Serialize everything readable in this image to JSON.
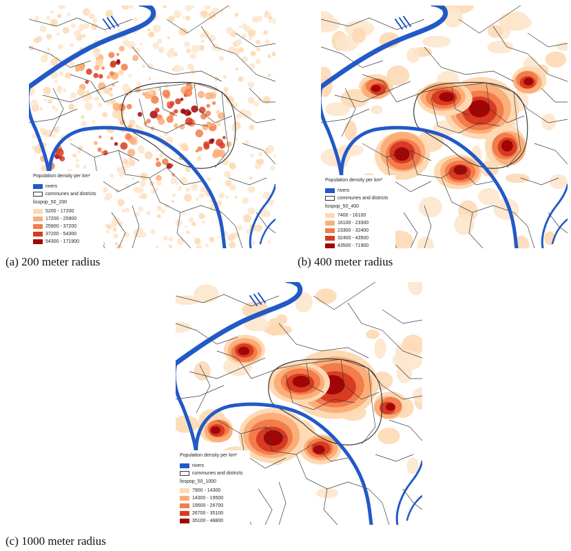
{
  "panels": [
    {
      "id": "a",
      "caption": "(a) 200 meter radius",
      "legend": {
        "title": "Population density per km²",
        "rivers_label": "rivers",
        "communes_label": "communes and districts",
        "field_name": "lisspop_50_200",
        "classes": [
          {
            "label": "5200 - 17200",
            "color": "#fdd9b4"
          },
          {
            "label": "17200 - 25900",
            "color": "#fcae79"
          },
          {
            "label": "25900 - 37200",
            "color": "#f27c4a"
          },
          {
            "label": "37200 - 54300",
            "color": "#d83b22"
          },
          {
            "label": "54300 - 171900",
            "color": "#a10606"
          }
        ]
      }
    },
    {
      "id": "b",
      "caption": "(b) 400 meter radius",
      "legend": {
        "title": "Population density per km²",
        "rivers_label": "rivers",
        "communes_label": "communes and districts",
        "field_name": "lisspop_50_400",
        "classes": [
          {
            "label": "7400 - 16100",
            "color": "#fdd9b4"
          },
          {
            "label": "16100 - 23300",
            "color": "#fcae79"
          },
          {
            "label": "23300 - 32400",
            "color": "#f27c4a"
          },
          {
            "label": "32400 - 43500",
            "color": "#d83b22"
          },
          {
            "label": "43500 - 71900",
            "color": "#a10606"
          }
        ]
      }
    },
    {
      "id": "c",
      "caption": "(c) 1000 meter radius",
      "legend": {
        "title": "Population density per km²",
        "rivers_label": "rivers",
        "communes_label": "communes and districts",
        "field_name": "lisspop_50_1000",
        "classes": [
          {
            "label": "7900 - 14300",
            "color": "#fdd9b4"
          },
          {
            "label": "14300 - 19500",
            "color": "#fcae79"
          },
          {
            "label": "19500 - 26700",
            "color": "#f27c4a"
          },
          {
            "label": "26700 - 35100",
            "color": "#d83b22"
          },
          {
            "label": "35100 - 48800",
            "color": "#a10606"
          }
        ]
      }
    }
  ],
  "colors": {
    "river": "#2259c6",
    "boundary": "#3a3a3a"
  }
}
